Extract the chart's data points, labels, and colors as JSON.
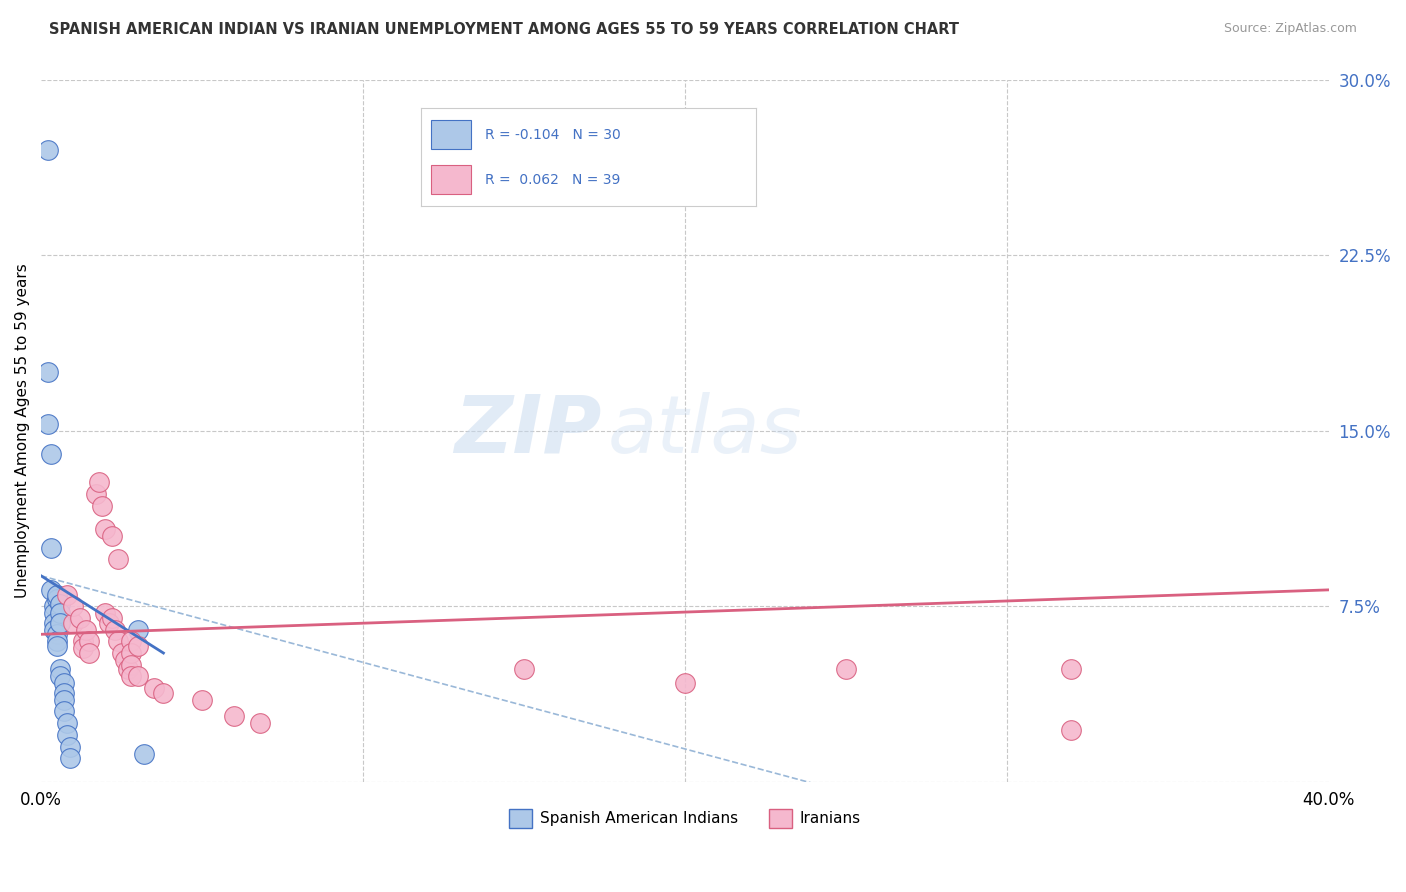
{
  "title": "SPANISH AMERICAN INDIAN VS IRANIAN UNEMPLOYMENT AMONG AGES 55 TO 59 YEARS CORRELATION CHART",
  "source": "Source: ZipAtlas.com",
  "ylabel": "Unemployment Among Ages 55 to 59 years",
  "xlim": [
    0.0,
    0.4
  ],
  "ylim": [
    0.0,
    0.3
  ],
  "xticks": [
    0.0,
    0.1,
    0.2,
    0.3,
    0.4
  ],
  "yticks": [
    0.0,
    0.075,
    0.15,
    0.225,
    0.3
  ],
  "yticklabels_right": [
    "",
    "7.5%",
    "15.0%",
    "22.5%",
    "30.0%"
  ],
  "watermark_zip": "ZIP",
  "watermark_atlas": "atlas",
  "color_blue": "#adc8e8",
  "color_pink": "#f5b8ce",
  "line_blue": "#4472c4",
  "line_pink": "#d96080",
  "line_blue_dashed": "#9ab8d8",
  "background": "#ffffff",
  "grid_color": "#c8c8c8",
  "blue_scatter": [
    [
      0.002,
      0.27
    ],
    [
      0.002,
      0.175
    ],
    [
      0.002,
      0.153
    ],
    [
      0.003,
      0.14
    ],
    [
      0.003,
      0.1
    ],
    [
      0.003,
      0.082
    ],
    [
      0.004,
      0.075
    ],
    [
      0.004,
      0.072
    ],
    [
      0.004,
      0.068
    ],
    [
      0.004,
      0.065
    ],
    [
      0.005,
      0.063
    ],
    [
      0.005,
      0.06
    ],
    [
      0.005,
      0.058
    ],
    [
      0.005,
      0.078
    ],
    [
      0.005,
      0.08
    ],
    [
      0.006,
      0.076
    ],
    [
      0.006,
      0.072
    ],
    [
      0.006,
      0.068
    ],
    [
      0.006,
      0.048
    ],
    [
      0.006,
      0.045
    ],
    [
      0.007,
      0.042
    ],
    [
      0.007,
      0.038
    ],
    [
      0.007,
      0.035
    ],
    [
      0.007,
      0.03
    ],
    [
      0.008,
      0.025
    ],
    [
      0.008,
      0.02
    ],
    [
      0.009,
      0.015
    ],
    [
      0.009,
      0.01
    ],
    [
      0.03,
      0.065
    ],
    [
      0.032,
      0.012
    ]
  ],
  "pink_scatter": [
    [
      0.008,
      0.08
    ],
    [
      0.01,
      0.068
    ],
    [
      0.01,
      0.075
    ],
    [
      0.012,
      0.07
    ],
    [
      0.013,
      0.06
    ],
    [
      0.013,
      0.057
    ],
    [
      0.014,
      0.065
    ],
    [
      0.015,
      0.06
    ],
    [
      0.015,
      0.055
    ],
    [
      0.017,
      0.123
    ],
    [
      0.018,
      0.128
    ],
    [
      0.019,
      0.118
    ],
    [
      0.02,
      0.108
    ],
    [
      0.02,
      0.072
    ],
    [
      0.021,
      0.068
    ],
    [
      0.022,
      0.105
    ],
    [
      0.022,
      0.07
    ],
    [
      0.023,
      0.065
    ],
    [
      0.024,
      0.095
    ],
    [
      0.024,
      0.06
    ],
    [
      0.025,
      0.055
    ],
    [
      0.026,
      0.052
    ],
    [
      0.027,
      0.048
    ],
    [
      0.028,
      0.06
    ],
    [
      0.028,
      0.055
    ],
    [
      0.028,
      0.05
    ],
    [
      0.028,
      0.045
    ],
    [
      0.03,
      0.058
    ],
    [
      0.03,
      0.045
    ],
    [
      0.035,
      0.04
    ],
    [
      0.038,
      0.038
    ],
    [
      0.05,
      0.035
    ],
    [
      0.06,
      0.028
    ],
    [
      0.068,
      0.025
    ],
    [
      0.15,
      0.048
    ],
    [
      0.2,
      0.042
    ],
    [
      0.25,
      0.048
    ],
    [
      0.32,
      0.048
    ],
    [
      0.32,
      0.022
    ]
  ]
}
